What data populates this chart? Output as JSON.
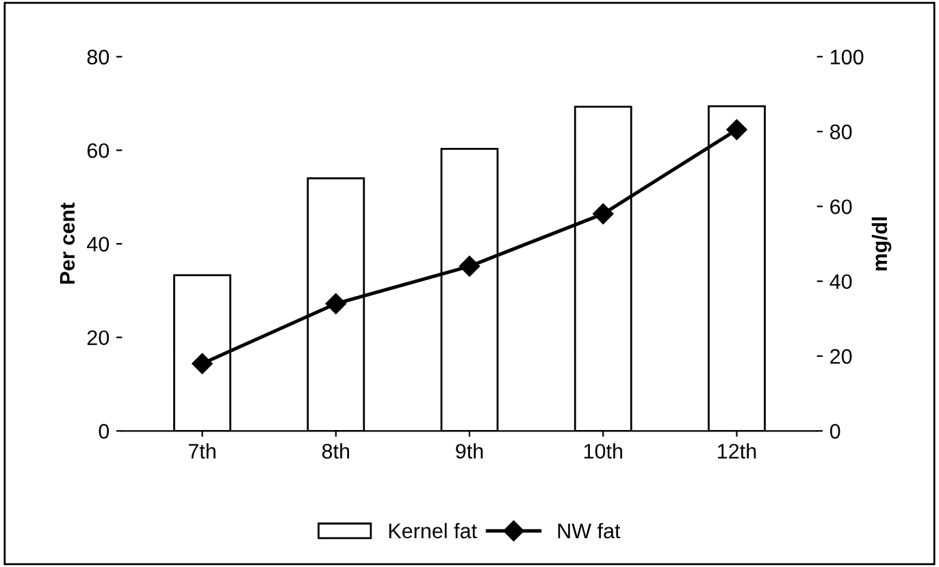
{
  "chart_data": {
    "type": "bar",
    "categories": [
      "7th",
      "8th",
      "9th",
      "10th",
      "12th"
    ],
    "series": [
      {
        "name": "Kernel fat",
        "color": "#ffffff",
        "values": [
          33.3,
          54,
          60.3,
          69.3,
          69.4
        ]
      },
      {
        "name": "NW fat",
        "type": "line",
        "axis": "y2",
        "color": "#000000",
        "marker": "diamond",
        "values": [
          18,
          34,
          44,
          58,
          80.5
        ]
      }
    ],
    "ylabel": "Per cent",
    "y2label": "mg/dl",
    "ylim": [
      0,
      80
    ],
    "yticks": [
      0,
      20,
      40,
      60,
      80
    ],
    "y2lim": [
      0,
      100
    ],
    "y2ticks": [
      0,
      20,
      40,
      60,
      80,
      100
    ],
    "legend": "bottom",
    "grid": false
  }
}
